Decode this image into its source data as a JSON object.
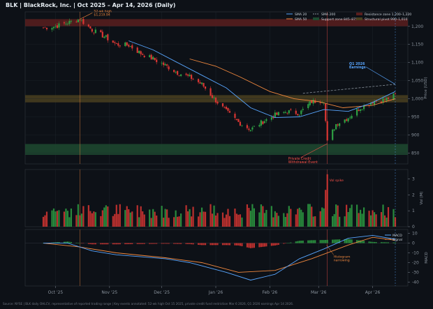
{
  "title": "BLK  |  BlackRock, Inc.  |  Oct 2025 – Apr 14, 2026  (Daily)",
  "footer": "Source: NYSE  |  BLK daily OHLCV, representative of reported trading range  |  Key events annotated: 52-wk high Oct 15 2025, private credit fund restriction Mar 6 2026, Q1 2026 earnings Apr 14 2026.",
  "colors": {
    "background": "#0d1117",
    "panel": "#0d1117",
    "grid": "#1e242c",
    "up": "#2ea043",
    "down": "#da3633",
    "sma20": "#58a6ff",
    "sma50": "#f0883e",
    "sma200": "#8b949e",
    "resistance": "#5a1e1e",
    "support": "#1e4a30",
    "pivot": "#4a4020",
    "annotation_orange": "#f0883e",
    "annotation_red": "#f85149",
    "annotation_blue": "#58a6ff"
  },
  "chart_data": [
    {
      "type": "candlestick",
      "panel": "price",
      "ylabel": "Price (USD)",
      "ylim": [
        820,
        1240
      ],
      "yticks": [
        850,
        900,
        950,
        1000,
        1050,
        1100,
        1150,
        1200
      ],
      "x_date_range": [
        "2025-09-24",
        "2026-04-14"
      ],
      "xtick_labels": [
        "Oct '25",
        "Nov '25",
        "Dec '25",
        "Jan '26",
        "Feb '26",
        "Mar '26",
        "Apr '26"
      ],
      "xtick_dates": [
        "2025-10-01",
        "2025-11-01",
        "2025-12-01",
        "2026-01-01",
        "2026-02-01",
        "2026-03-01",
        "2026-04-01"
      ],
      "legend": {
        "placement": "top-right",
        "entries": [
          {
            "label": "SMA 20",
            "kind": "line",
            "color": "#58a6ff"
          },
          {
            "label": "SMA 50",
            "kind": "line",
            "color": "#f0883e"
          },
          {
            "label": "SMA 200",
            "kind": "dash",
            "color": "#8b949e"
          },
          {
            "label": "Support zone 845–875",
            "kind": "box",
            "color": "#1e4a30"
          },
          {
            "label": "Resistance zone 1,200–1,220",
            "kind": "box",
            "color": "#5a1e1e"
          },
          {
            "label": "Structural pivot 990–1,010",
            "kind": "box",
            "color": "#4a4020"
          }
        ]
      },
      "zones": [
        {
          "name": "resistance",
          "from": 1200,
          "to": 1220
        },
        {
          "name": "pivot",
          "from": 990,
          "to": 1010
        },
        {
          "name": "support",
          "from": 845,
          "to": 875
        }
      ],
      "anchors": [
        [
          "2025-09-24",
          1196
        ],
        [
          "2025-10-01",
          1200
        ],
        [
          "2025-10-08",
          1210
        ],
        [
          "2025-10-15",
          1219.94
        ],
        [
          "2025-10-22",
          1190
        ],
        [
          "2025-10-29",
          1172
        ],
        [
          "2025-11-05",
          1150
        ],
        [
          "2025-11-12",
          1148
        ],
        [
          "2025-11-19",
          1125
        ],
        [
          "2025-11-26",
          1110
        ],
        [
          "2025-12-03",
          1092
        ],
        [
          "2025-12-10",
          1072
        ],
        [
          "2025-12-17",
          1060
        ],
        [
          "2025-12-24",
          1040
        ],
        [
          "2025-12-31",
          1000
        ],
        [
          "2026-01-07",
          965
        ],
        [
          "2026-01-14",
          935
        ],
        [
          "2026-01-21",
          915
        ],
        [
          "2026-01-28",
          937
        ],
        [
          "2026-02-04",
          955
        ],
        [
          "2026-02-11",
          965
        ],
        [
          "2026-02-18",
          960
        ],
        [
          "2026-02-25",
          992
        ],
        [
          "2026-03-04",
          996
        ],
        [
          "2026-03-06",
          880
        ],
        [
          "2026-03-11",
          930
        ],
        [
          "2026-03-18",
          948
        ],
        [
          "2026-03-25",
          975
        ],
        [
          "2026-04-01",
          992
        ],
        [
          "2026-04-08",
          998
        ],
        [
          "2026-04-14",
          1010
        ]
      ],
      "sma20": [
        [
          "2025-11-12",
          1160
        ],
        [
          "2025-11-26",
          1135
        ],
        [
          "2025-12-10",
          1100
        ],
        [
          "2025-12-24",
          1065
        ],
        [
          "2026-01-07",
          1030
        ],
        [
          "2026-01-21",
          975
        ],
        [
          "2026-02-04",
          948
        ],
        [
          "2026-02-18",
          950
        ],
        [
          "2026-03-04",
          970
        ],
        [
          "2026-03-18",
          965
        ],
        [
          "2026-04-01",
          990
        ],
        [
          "2026-04-14",
          1020
        ]
      ],
      "sma50": [
        [
          "2025-12-17",
          1110
        ],
        [
          "2026-01-01",
          1090
        ],
        [
          "2026-01-15",
          1060
        ],
        [
          "2026-02-01",
          1020
        ],
        [
          "2026-02-15",
          1000
        ],
        [
          "2026-03-01",
          992
        ],
        [
          "2026-03-15",
          975
        ],
        [
          "2026-04-01",
          982
        ],
        [
          "2026-04-14",
          1000
        ]
      ],
      "sma200": [
        [
          "2026-02-20",
          1015
        ],
        [
          "2026-04-14",
          1040
        ]
      ],
      "annotations": [
        {
          "text": "52-wk high",
          "value": "$1,219.94",
          "date": "2025-10-15",
          "price": 1219.94
        },
        {
          "text": "Private Credit",
          "text2": "Withdrawal Event",
          "date": "2026-03-06",
          "price": 880
        },
        {
          "text": "Q1 2026",
          "text2": "Earnings",
          "date": "2026-04-14",
          "price": 1040
        }
      ]
    },
    {
      "type": "bar",
      "panel": "volume",
      "ylabel": "Vol (M)",
      "ylim": [
        0,
        3.6
      ],
      "yticks": [
        0,
        1,
        2,
        3
      ],
      "annotation": "Vol spike",
      "spike": {
        "date": "2026-03-06",
        "value": 3.3
      }
    },
    {
      "type": "line",
      "panel": "macd",
      "ylabel": "MACD",
      "ylim": [
        -44,
        14
      ],
      "yticks": [
        -40,
        -30,
        -20,
        -10,
        0,
        10
      ],
      "legend": {
        "placement": "top-right",
        "entries": [
          {
            "label": "MACD",
            "color": "#58a6ff"
          },
          {
            "label": "Signal",
            "color": "#f0883e"
          }
        ]
      },
      "macd": [
        [
          "2025-09-24",
          0
        ],
        [
          "2025-10-08",
          0
        ],
        [
          "2025-10-22",
          -8
        ],
        [
          "2025-11-05",
          -12
        ],
        [
          "2025-11-19",
          -14
        ],
        [
          "2025-12-03",
          -16
        ],
        [
          "2025-12-17",
          -20
        ],
        [
          "2026-01-07",
          -30
        ],
        [
          "2026-01-21",
          -38
        ],
        [
          "2026-02-04",
          -32
        ],
        [
          "2026-02-18",
          -16
        ],
        [
          "2026-03-04",
          -6
        ],
        [
          "2026-03-18",
          5
        ],
        [
          "2026-04-01",
          8
        ],
        [
          "2026-04-14",
          4
        ]
      ],
      "signal": [
        [
          "2025-09-24",
          0
        ],
        [
          "2025-10-15",
          -4
        ],
        [
          "2025-11-05",
          -10
        ],
        [
          "2025-12-03",
          -15
        ],
        [
          "2025-12-24",
          -20
        ],
        [
          "2026-01-14",
          -30
        ],
        [
          "2026-02-04",
          -28
        ],
        [
          "2026-02-25",
          -16
        ],
        [
          "2026-03-18",
          -2
        ],
        [
          "2026-04-01",
          6
        ],
        [
          "2026-04-14",
          3
        ]
      ],
      "annotation": "Histogram narrowing"
    }
  ]
}
